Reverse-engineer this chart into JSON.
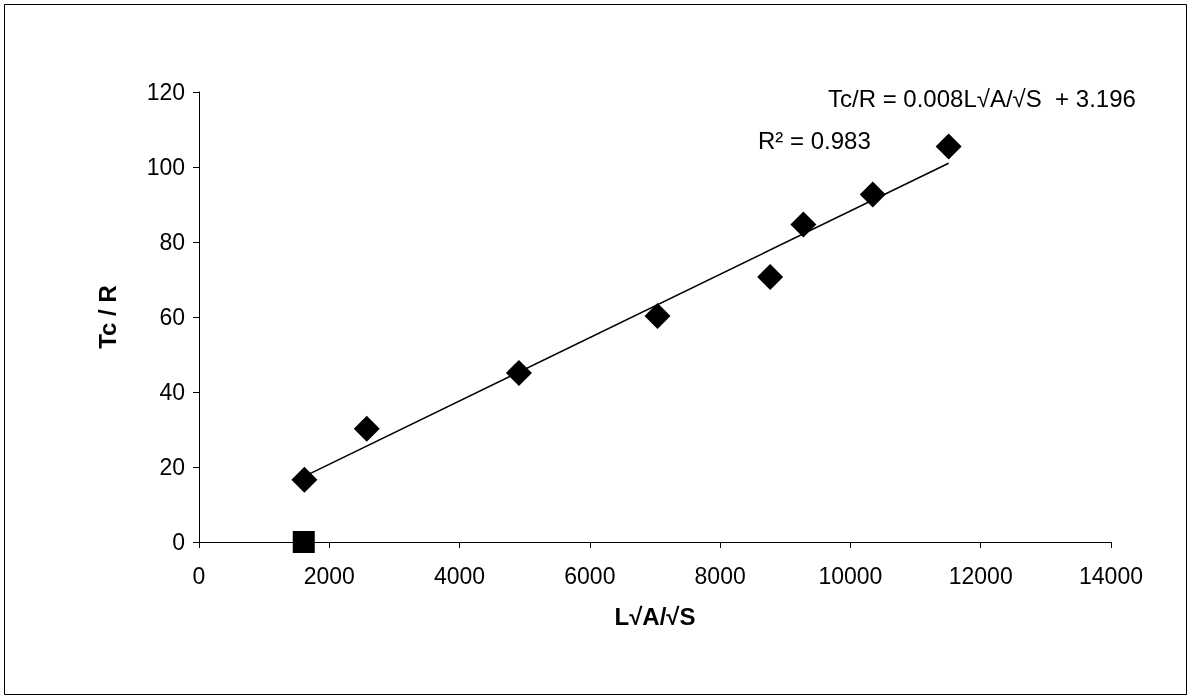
{
  "chart_data": {
    "type": "scatter",
    "xlabel": "L√A/√S",
    "ylabel": "Tc / R",
    "annotations": [
      "Tc/R = 0.008L√A/√S  + 3.196",
      "R² = 0.983"
    ],
    "xlim": [
      0,
      14000
    ],
    "xticks": [
      0,
      2000,
      4000,
      6000,
      8000,
      10000,
      12000,
      14000
    ],
    "ylim": [
      0,
      120
    ],
    "yticks": [
      0,
      20,
      40,
      60,
      80,
      100,
      120
    ],
    "grid": false,
    "series": [
      {
        "type": "scatter",
        "marker": "diamond",
        "color": "#000000",
        "x": [
          1618,
          2575,
          4911,
          7038,
          8768,
          9278,
          10343,
          11507
        ],
        "values": [
          16.6,
          30.2,
          45.1,
          60.3,
          70.7,
          84.7,
          92.7,
          105.5
        ]
      },
      {
        "type": "scatter",
        "marker": "square",
        "color": "#000000",
        "x": [
          1608
        ],
        "values": [
          0
        ]
      },
      {
        "type": "line",
        "marker": "none",
        "line_style": "solid",
        "color": "#000000",
        "x": [
          1618,
          11507
        ],
        "values": [
          17.5,
          101
        ]
      }
    ]
  }
}
